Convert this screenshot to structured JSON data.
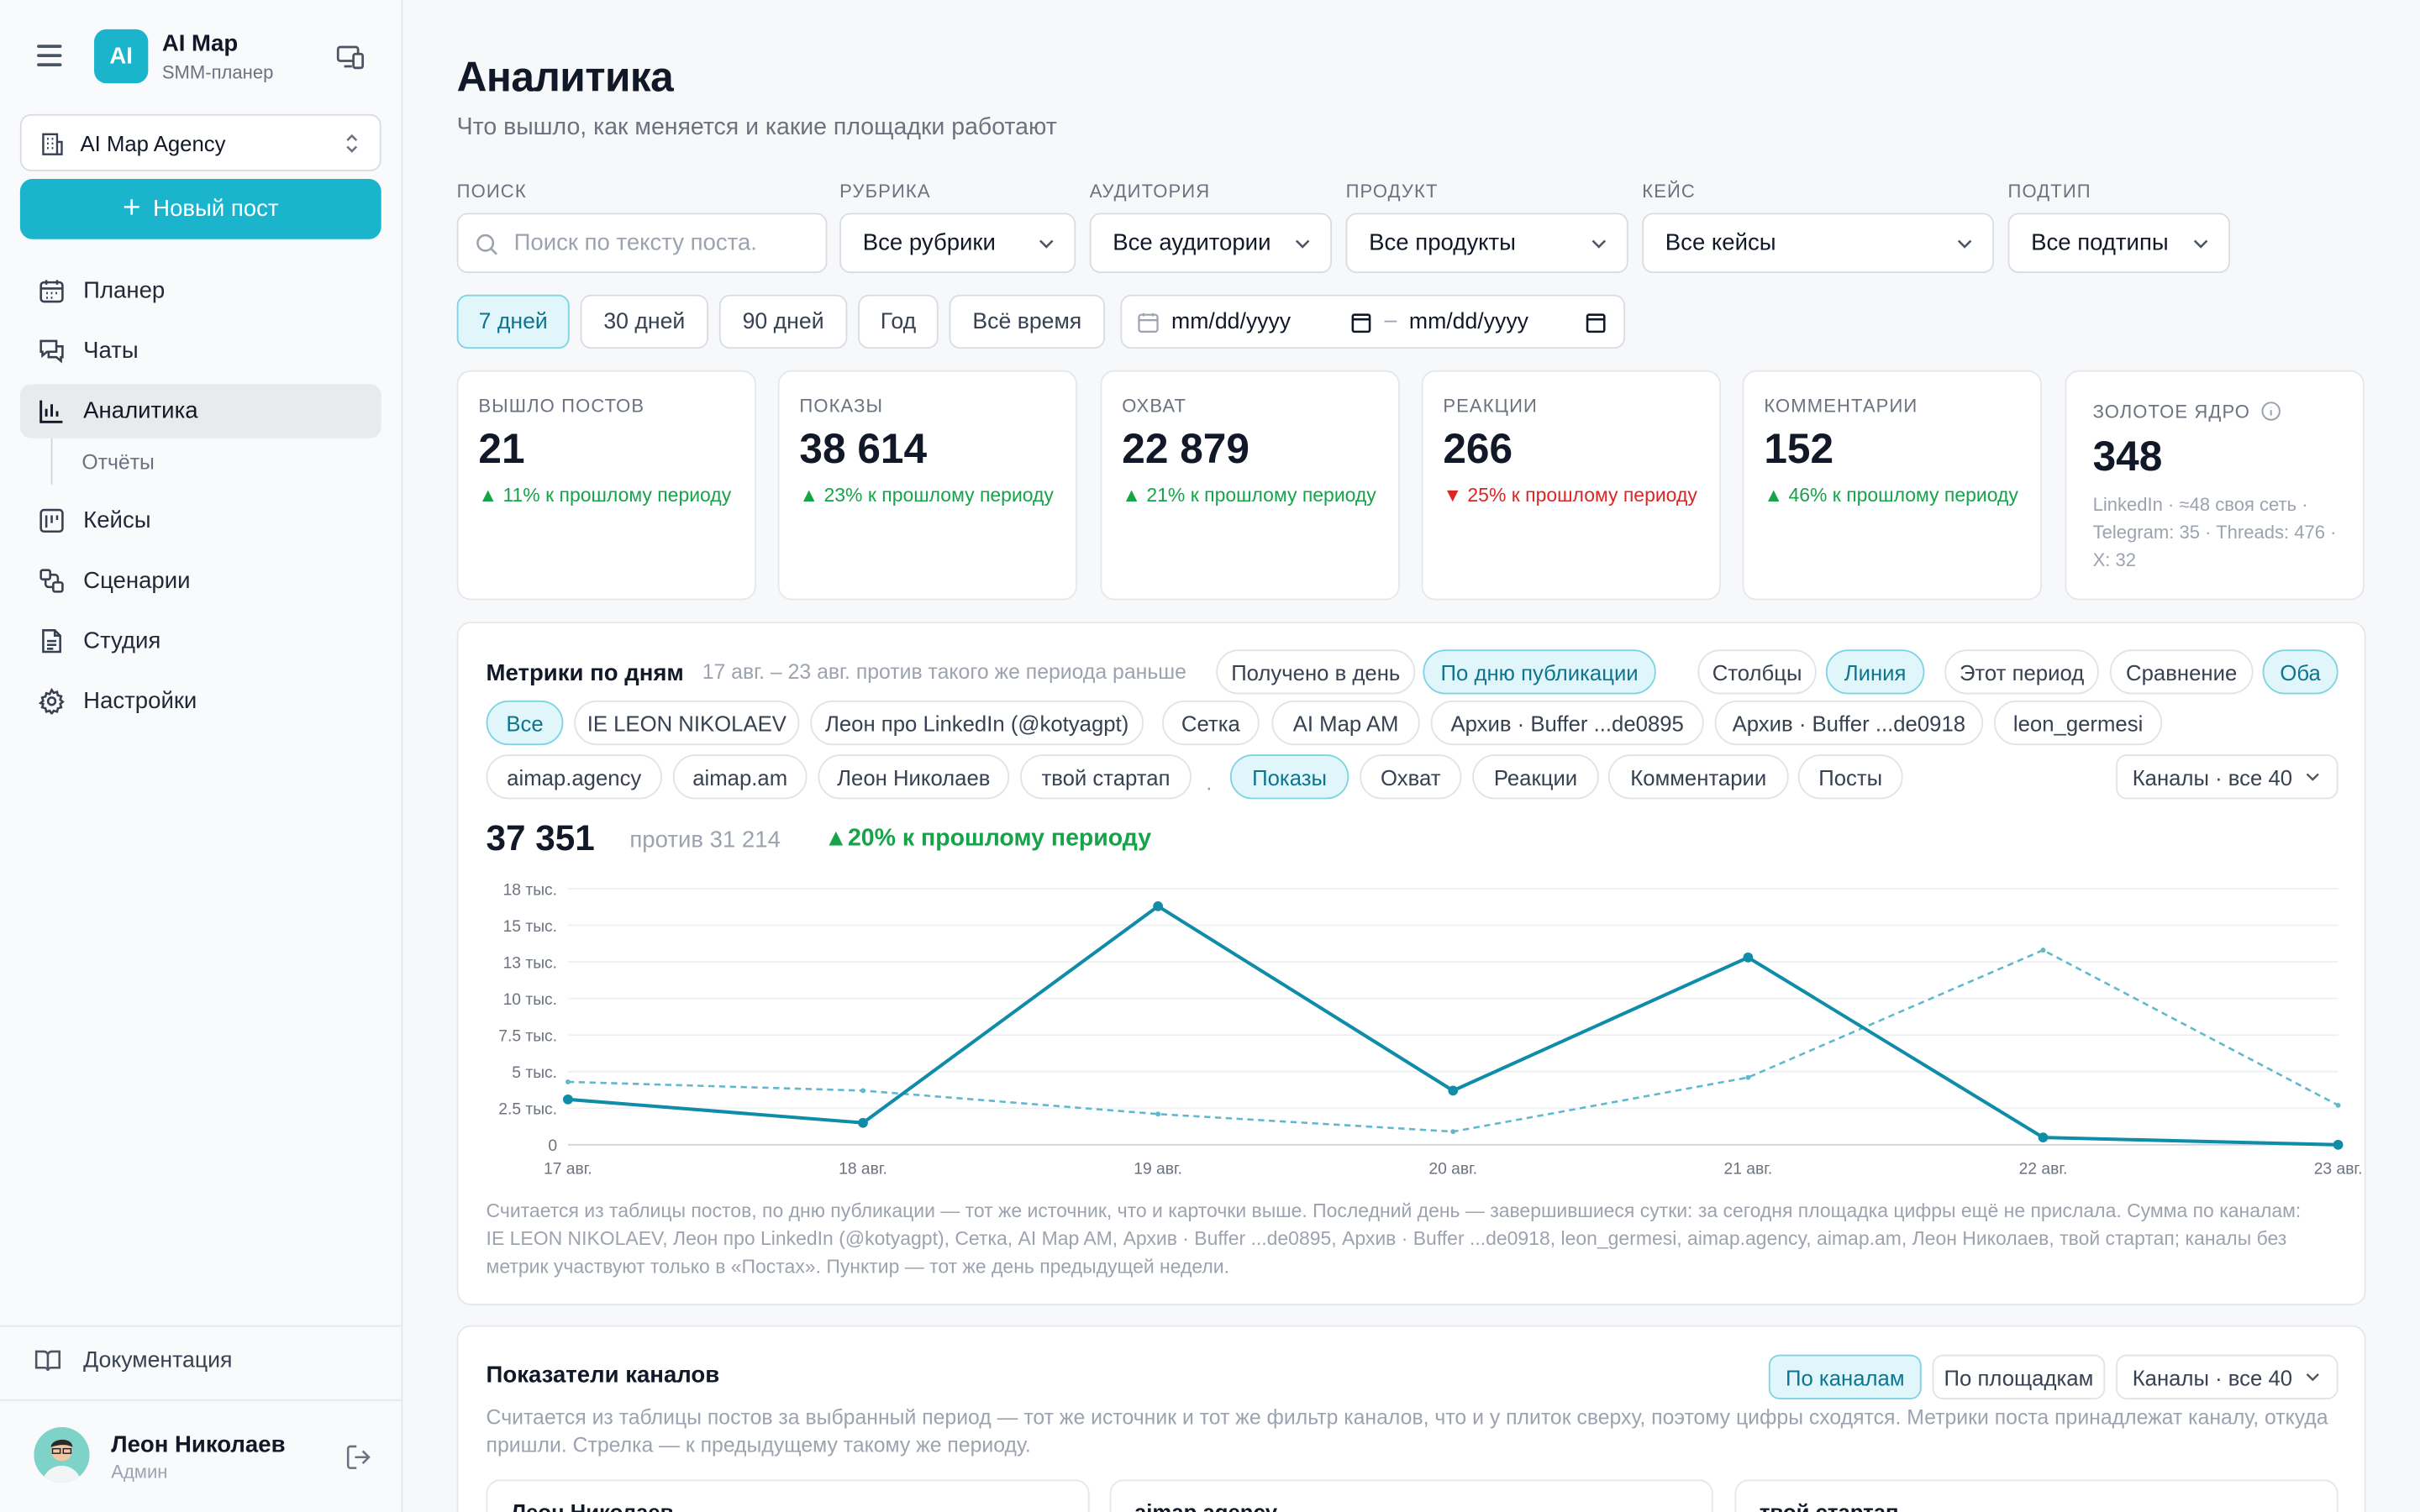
{
  "app": {
    "logo": "AI",
    "name": "AI Map",
    "subtitle": "SMM-планер"
  },
  "sidebar": {
    "agency": "AI Map Agency",
    "new_post": "Новый пост",
    "items": [
      {
        "label": "Планер",
        "icon": "calendar-icon"
      },
      {
        "label": "Чаты",
        "icon": "chat-icon"
      },
      {
        "label": "Аналитика",
        "icon": "bar-chart-icon",
        "active": true
      },
      {
        "label": "Кейсы",
        "icon": "case-icon"
      },
      {
        "label": "Сценарии",
        "icon": "scenario-icon"
      },
      {
        "label": "Студия",
        "icon": "document-icon"
      },
      {
        "label": "Настройки",
        "icon": "gear-icon"
      }
    ],
    "sub_item": "Отчёты",
    "docs": "Документация",
    "user": {
      "name": "Леон Николаев",
      "role": "Админ"
    }
  },
  "page": {
    "title": "Аналитика",
    "subtitle": "Что вышло, как меняется и какие площадки работают"
  },
  "filters": {
    "search_label": "Поиск",
    "search_placeholder": "Поиск по тексту поста.",
    "rubric_label": "Рубрика",
    "rubric_value": "Все рубрики",
    "audience_label": "Аудитория",
    "audience_value": "Все аудитории",
    "product_label": "Продукт",
    "product_value": "Все продукты",
    "case_label": "Кейс",
    "case_value": "Все кейсы",
    "subtype_label": "Подтип",
    "subtype_value": "Все подтипы"
  },
  "periods": [
    "7 дней",
    "30 дней",
    "90 дней",
    "Год",
    "Всё время"
  ],
  "active_period": "7 дней",
  "date_from": "mm/dd/yyyy",
  "date_sep": "–",
  "date_to": "mm/dd/yyyy",
  "kpis": [
    {
      "label": "Вышло постов",
      "value": "21",
      "delta": "▲ 11% к прошлому периоду",
      "dir": "up"
    },
    {
      "label": "Показы",
      "value": "38 614",
      "delta": "▲ 23% к прошлому периоду",
      "dir": "up"
    },
    {
      "label": "Охват",
      "value": "22 879",
      "delta": "▲ 21% к прошлому периоду",
      "dir": "up"
    },
    {
      "label": "Реакции",
      "value": "266",
      "delta": "▼ 25% к прошлому периоду",
      "dir": "down"
    },
    {
      "label": "Комментарии",
      "value": "152",
      "delta": "▲ 46% к прошлому периоду",
      "dir": "up"
    }
  ],
  "gold": {
    "label": "Золотое ядро",
    "value": "348",
    "detail": "LinkedIn · ≈48 своя сеть · Telegram: 35 · Threads: 476 · X: 32"
  },
  "metrics": {
    "title": "Метрики по дням",
    "range": "17 авг. – 23 авг. против такого же периода раньше",
    "mode_tabs": [
      "Получено в день",
      "По дню публикации"
    ],
    "mode_active": "По дню публикации",
    "view_tabs": [
      "Столбцы",
      "Линия"
    ],
    "view_active": "Линия",
    "period_tabs": [
      "Этот период",
      "Сравнение",
      "Оба"
    ],
    "period_active": "Оба",
    "channels": [
      "Все",
      "IE LEON NIKOLAEV",
      "Леон про LinkedIn (@kotyagpt)",
      "Сетка",
      "AI Map AM",
      "Архив · Buffer ...de0895",
      "Архив · Buffer ...de0918",
      "leon_germesi",
      "aimap.agency",
      "aimap.am",
      "Леон Николаев",
      "твой стартап"
    ],
    "channel_active": "Все",
    "separator": "·",
    "metric_tabs": [
      "Показы",
      "Охват",
      "Реакции",
      "Комментарии",
      "Посты"
    ],
    "metric_active": "Показы",
    "channels_dropdown": "Каналы · все 40",
    "total": "37 351",
    "vs": "против 31 214",
    "change": "▲20% к прошлому периоду",
    "note": "Считается из таблицы постов, по дню публикации — тот же источник, что и карточки выше. Последний день — завершившиеся сутки: за сегодня площадка цифры ещё не прислала. Сумма по каналам: IE LEON NIKOLAEV, Леон про LinkedIn (@kotyagpt), Сетка, AI Map AM, Архив · Buffer ...de0895, Архив · Buffer ...de0918, leon_germesi, aimap.agency, aimap.am, Леон Николаев, твой стартап; каналы без метрик участвуют только в «Постах». Пунктир — тот же день предыдущей недели."
  },
  "chart_data": {
    "type": "line",
    "x": [
      "17 авг.",
      "18 авг.",
      "19 авг.",
      "20 авг.",
      "21 авг.",
      "22 авг.",
      "23 авг."
    ],
    "y_ticks": [
      "0",
      "2.5 тыс.",
      "5 тыс.",
      "7.5 тыс.",
      "10 тыс.",
      "13 тыс.",
      "15 тыс.",
      "18 тыс."
    ],
    "ylim": [
      0,
      17500
    ],
    "grid": true,
    "series": [
      {
        "values": [
          3100,
          1500,
          16300,
          3700,
          12800,
          500,
          0
        ],
        "style": "solid",
        "color": "#0e8ca8"
      },
      {
        "values": [
          4300,
          3700,
          2100,
          900,
          4600,
          13300,
          2700
        ],
        "style": "dashed",
        "color": "#5fb8cc"
      }
    ]
  },
  "channels_card": {
    "title": "Показатели каналов",
    "tabs": [
      "По каналам",
      "По площадкам"
    ],
    "tab_active": "По каналам",
    "dropdown": "Каналы · все 40",
    "note": "Считается из таблицы постов за выбранный период — тот же источник и тот же фильтр каналов, что и у плиток сверху, поэтому цифры сходятся. Метрики поста принадлежат каналу, откуда пришли. Стрелка — к предыдущему такому же периоду.",
    "cards": [
      "Леон Николаев",
      "aimap.agency",
      "твой стартап"
    ]
  }
}
